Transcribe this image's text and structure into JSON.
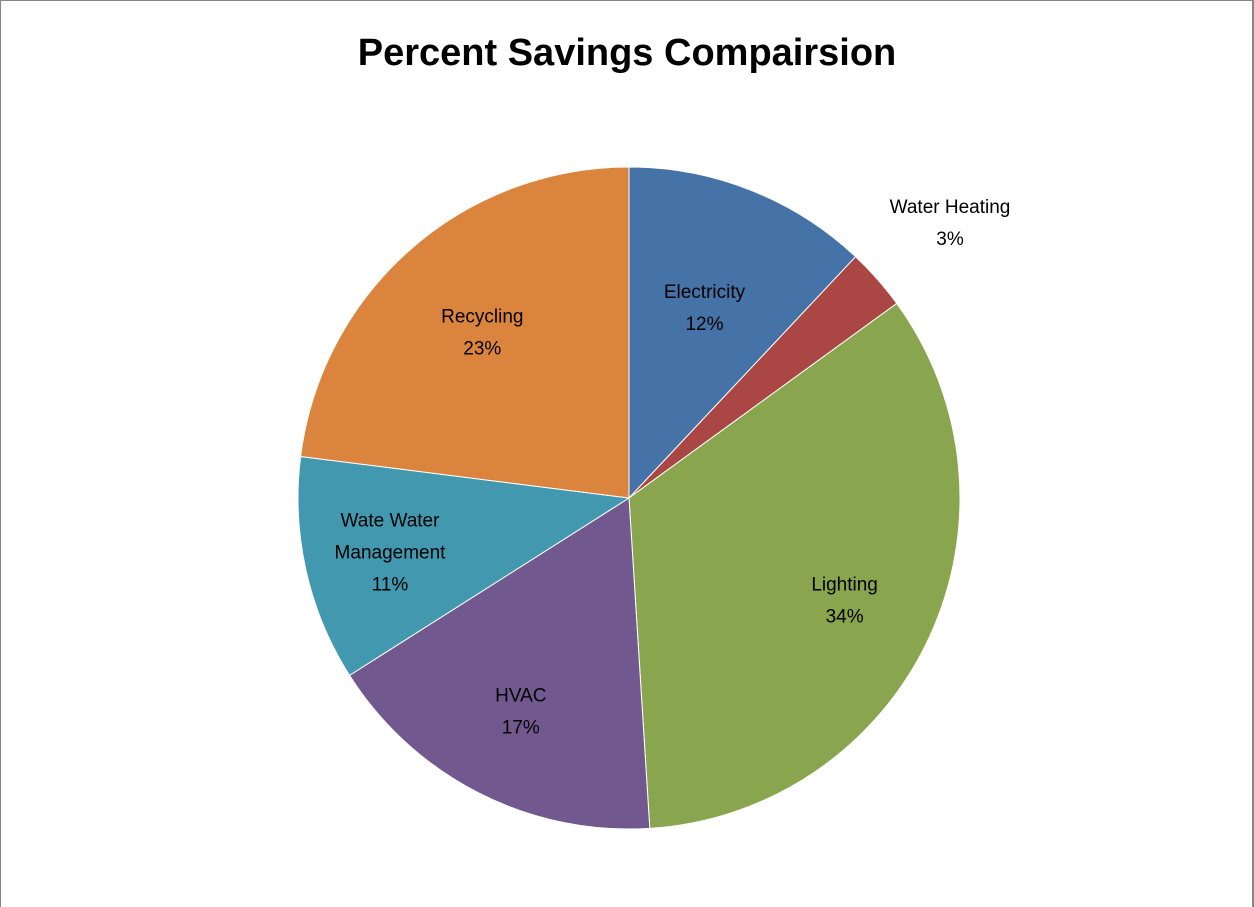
{
  "chart_data": {
    "type": "pie",
    "title": "Percent Savings Compairsion",
    "slices": [
      {
        "label": "Electricity",
        "value": 12,
        "value_label": "12%",
        "color": "#4572A7"
      },
      {
        "label": "Water Heating",
        "value": 3,
        "value_label": "3%",
        "color": "#AA4643"
      },
      {
        "label": "Lighting",
        "value": 34,
        "value_label": "34%",
        "color": "#89A54E"
      },
      {
        "label": "HVAC",
        "value": 17,
        "value_label": "17%",
        "color": "#71588F"
      },
      {
        "label": "Wate Water Management",
        "value": 11,
        "value_label": "11%",
        "color": "#4198AF"
      },
      {
        "label": "Recycling",
        "value": 23,
        "value_label": "23%",
        "color": "#DB843D"
      }
    ],
    "start_angle": "12 o'clock",
    "direction": "clockwise",
    "legend": "none",
    "labels": "category and percentage on slices"
  }
}
